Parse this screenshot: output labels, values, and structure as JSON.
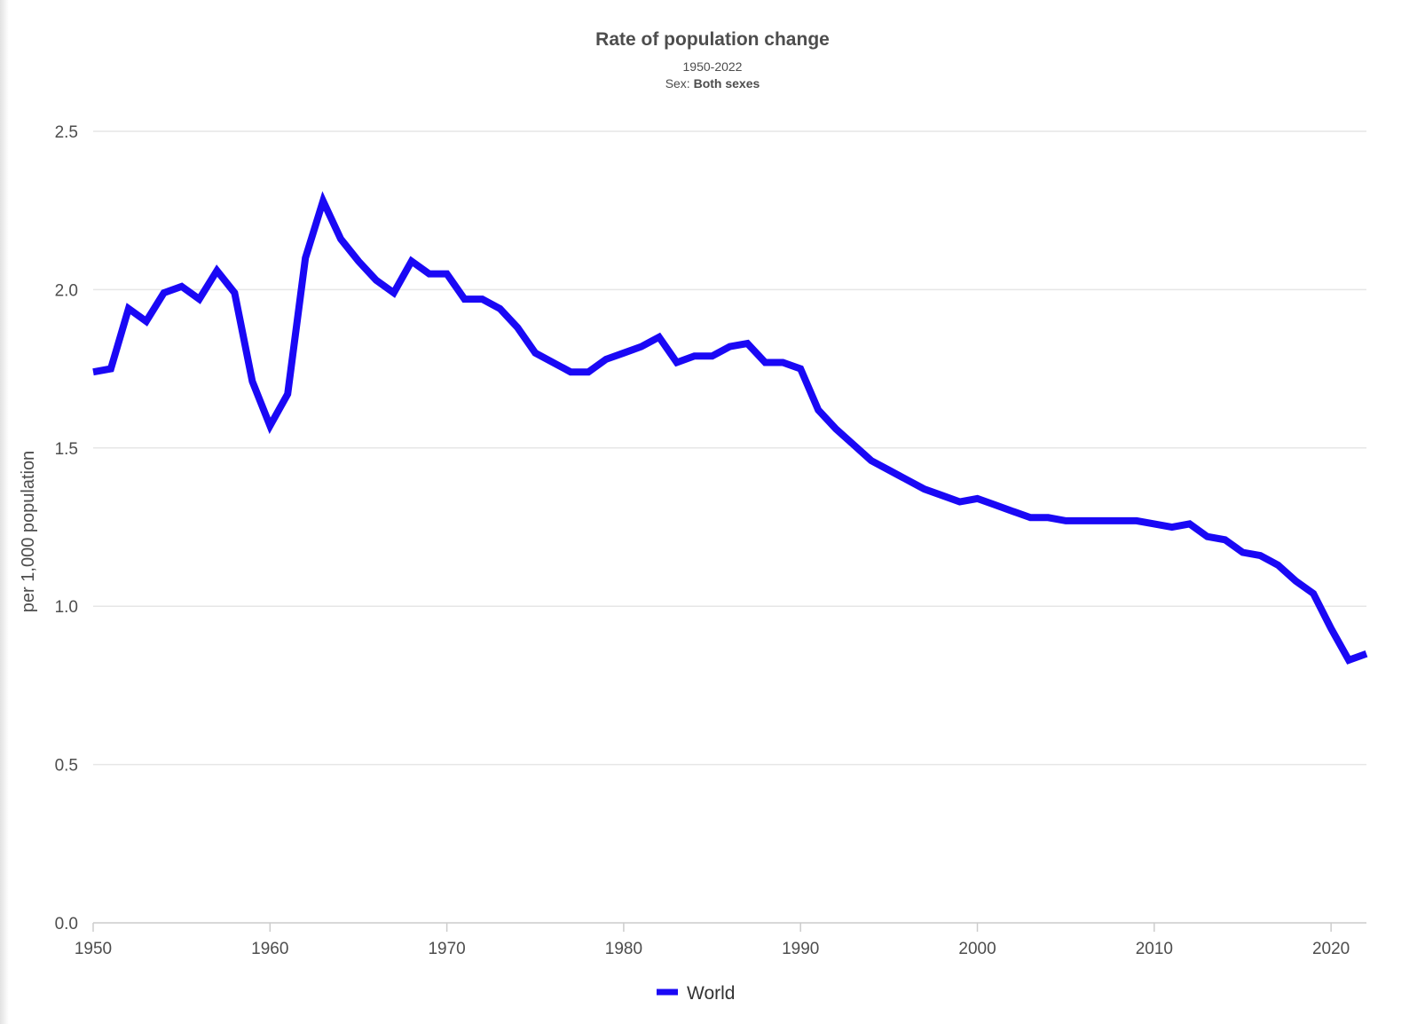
{
  "chart_data": {
    "type": "line",
    "title": "Rate of population change",
    "subtitle": "1950-2022",
    "filter_label": "Sex:",
    "filter_value": "Both sexes",
    "xlabel": "",
    "ylabel": "per 1,000 population",
    "xlim": [
      1950,
      2022
    ],
    "ylim": [
      0,
      2.5
    ],
    "x_ticks": [
      "1950",
      "1960",
      "1970",
      "1980",
      "1990",
      "2000",
      "2010",
      "2020"
    ],
    "y_ticks": [
      "0.0",
      "0.5",
      "1.0",
      "1.5",
      "2.0",
      "2.5"
    ],
    "grid": true,
    "legend_position": "bottom",
    "x": [
      1950,
      1951,
      1952,
      1953,
      1954,
      1955,
      1956,
      1957,
      1958,
      1959,
      1960,
      1961,
      1962,
      1963,
      1964,
      1965,
      1966,
      1967,
      1968,
      1969,
      1970,
      1971,
      1972,
      1973,
      1974,
      1975,
      1976,
      1977,
      1978,
      1979,
      1980,
      1981,
      1982,
      1983,
      1984,
      1985,
      1986,
      1987,
      1988,
      1989,
      1990,
      1991,
      1992,
      1993,
      1994,
      1995,
      1996,
      1997,
      1998,
      1999,
      2000,
      2001,
      2002,
      2003,
      2004,
      2005,
      2006,
      2007,
      2008,
      2009,
      2010,
      2011,
      2012,
      2013,
      2014,
      2015,
      2016,
      2017,
      2018,
      2019,
      2020,
      2021,
      2022
    ],
    "series": [
      {
        "name": "World",
        "color": "#1a08f5",
        "values": [
          1.74,
          1.75,
          1.94,
          1.9,
          1.99,
          2.01,
          1.97,
          2.06,
          1.99,
          1.71,
          1.57,
          1.67,
          2.1,
          2.28,
          2.16,
          2.09,
          2.03,
          1.99,
          2.09,
          2.05,
          2.05,
          1.97,
          1.97,
          1.94,
          1.88,
          1.8,
          1.77,
          1.74,
          1.74,
          1.78,
          1.8,
          1.82,
          1.85,
          1.77,
          1.79,
          1.79,
          1.82,
          1.83,
          1.77,
          1.77,
          1.75,
          1.62,
          1.56,
          1.51,
          1.46,
          1.43,
          1.4,
          1.37,
          1.35,
          1.33,
          1.34,
          1.32,
          1.3,
          1.28,
          1.28,
          1.27,
          1.27,
          1.27,
          1.27,
          1.27,
          1.26,
          1.25,
          1.26,
          1.22,
          1.21,
          1.17,
          1.16,
          1.13,
          1.08,
          1.04,
          0.93,
          0.83,
          0.85
        ]
      }
    ]
  }
}
